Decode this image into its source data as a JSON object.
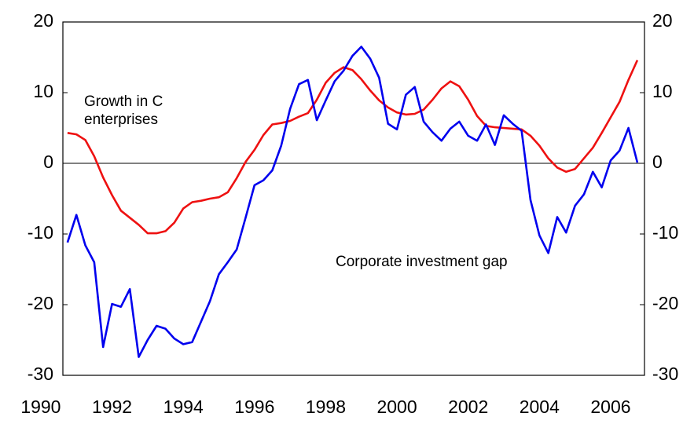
{
  "chart_data": {
    "type": "line",
    "x": [
      1990.75,
      1991,
      1991.25,
      1991.5,
      1991.75,
      1992,
      1992.25,
      1992.5,
      1992.75,
      1993,
      1993.25,
      1993.5,
      1993.75,
      1994,
      1994.25,
      1994.5,
      1994.75,
      1995,
      1995.25,
      1995.5,
      1995.75,
      1996,
      1996.25,
      1996.5,
      1996.75,
      1997,
      1997.25,
      1997.5,
      1997.75,
      1998,
      1998.25,
      1998.5,
      1998.75,
      1999,
      1999.25,
      1999.5,
      1999.75,
      2000,
      2000.25,
      2000.5,
      2000.75,
      2001,
      2001.25,
      2001.5,
      2001.75,
      2002,
      2002.25,
      2002.5,
      2002.75,
      2003,
      2003.25,
      2003.5,
      2003.75,
      2004,
      2004.25,
      2004.5,
      2004.75,
      2005,
      2005.25,
      2005.5,
      2005.75,
      2006,
      2006.25,
      2006.5,
      2006.75
    ],
    "series": [
      {
        "name": "Corporate investment gap",
        "color": "#0000ee",
        "values": [
          -11.2,
          -7.3,
          -11.6,
          -14,
          -26,
          -19.9,
          -20.3,
          -17.8,
          -27.4,
          -25,
          -23,
          -23.4,
          -24.8,
          -25.6,
          -25.3,
          -22.4,
          -19.5,
          -15.7,
          -14,
          -12.2,
          -7.7,
          -3.1,
          -2.4,
          -1,
          2.5,
          7.7,
          11.2,
          11.8,
          6.1,
          8.9,
          11.6,
          13.1,
          15.2,
          16.5,
          14.8,
          12.1,
          5.6,
          4.8,
          9.7,
          10.8,
          5.9,
          4.4,
          3.2,
          4.9,
          5.9,
          3.9,
          3.2,
          5.5,
          2.6,
          6.8,
          5.6,
          4.6,
          -5.2,
          -10.2,
          -12.7,
          -7.6,
          -9.8,
          -6,
          -4.4,
          -1.2,
          -3.4,
          0.4,
          1.8,
          5,
          0.1
        ]
      },
      {
        "name": "Growth in C enterprises",
        "color": "#ee1111",
        "values": [
          4.3,
          4.1,
          3.3,
          1,
          -2,
          -4.5,
          -6.7,
          -7.7,
          -8.7,
          -9.9,
          -9.9,
          -9.6,
          -8.4,
          -6.4,
          -5.5,
          -5.3,
          -5,
          -4.8,
          -4.1,
          -2.1,
          0.2,
          1.9,
          4,
          5.5,
          5.7,
          6,
          6.6,
          7.1,
          9,
          11.4,
          12.8,
          13.6,
          13.2,
          11.9,
          10.3,
          8.9,
          7.9,
          7.2,
          6.9,
          7,
          7.6,
          9,
          10.6,
          11.6,
          10.9,
          9,
          6.7,
          5.3,
          5.1,
          5,
          4.9,
          4.8,
          3.9,
          2.5,
          0.7,
          -0.6,
          -1.2,
          -0.8,
          0.7,
          2.2,
          4.3,
          6.5,
          8.7,
          11.8,
          14.6
        ]
      }
    ],
    "xlim": [
      1990.62,
      2006.95
    ],
    "xticks": [
      1990,
      1992,
      1994,
      1996,
      1998,
      2000,
      2002,
      2004,
      2006
    ],
    "ylim": [
      -30,
      20
    ],
    "yticks": [
      -30,
      -20,
      -10,
      0,
      10,
      20
    ],
    "y2lim": [
      -30,
      20
    ],
    "y2ticks": [
      -30,
      -20,
      -10,
      0,
      10,
      20
    ],
    "zero_line": true
  }
}
